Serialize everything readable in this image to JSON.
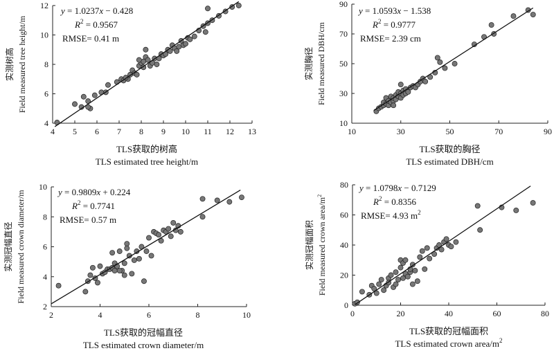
{
  "chart_data": [
    {
      "type": "scatter",
      "equation": [
        "y",
        " = 1.0237",
        "x",
        " − 0.428"
      ],
      "r2_prefix": "R",
      "r2_sup": "2",
      "r2_value": " = 0.9567",
      "rmse": "RMSE= 0.41 m",
      "rmse_sup": "",
      "xlabel_cn": "TLS获取的树高",
      "xlabel": "TLS estimated tree height/m",
      "ylabel_cn": "实测树高",
      "ylabel": "Field measured tree height/m",
      "xlim": [
        4,
        13
      ],
      "ylim": [
        4,
        12
      ],
      "xticks": [
        4,
        5,
        6,
        7,
        8,
        9,
        10,
        11,
        12,
        13
      ],
      "yticks": [
        4,
        6,
        8,
        10,
        12
      ],
      "fit": {
        "slope": 1.0237,
        "intercept": -0.428,
        "x_range": [
          4.1,
          12.4
        ]
      },
      "points": [
        [
          4.2,
          4.05
        ],
        [
          5.0,
          5.3
        ],
        [
          5.3,
          5.1
        ],
        [
          5.4,
          5.8
        ],
        [
          5.6,
          5.5
        ],
        [
          5.7,
          5.0
        ],
        [
          5.6,
          5.1
        ],
        [
          5.9,
          5.9
        ],
        [
          6.2,
          6.1
        ],
        [
          6.4,
          6.1
        ],
        [
          6.5,
          6.6
        ],
        [
          6.9,
          6.8
        ],
        [
          7.1,
          7.0
        ],
        [
          7.2,
          6.9
        ],
        [
          7.4,
          7.0
        ],
        [
          7.5,
          7.3
        ],
        [
          7.6,
          7.6
        ],
        [
          7.7,
          7.4
        ],
        [
          7.8,
          7.3
        ],
        [
          7.9,
          7.9
        ],
        [
          8.0,
          8.1
        ],
        [
          8.1,
          8.2
        ],
        [
          8.1,
          7.8
        ],
        [
          8.2,
          8.5
        ],
        [
          8.3,
          8.3
        ],
        [
          8.4,
          7.9
        ],
        [
          8.5,
          8.1
        ],
        [
          8.6,
          8.4
        ],
        [
          8.7,
          8.0
        ],
        [
          8.8,
          8.4
        ],
        [
          8.9,
          8.7
        ],
        [
          9.0,
          8.6
        ],
        [
          9.1,
          8.7
        ],
        [
          9.2,
          9.0
        ],
        [
          9.3,
          8.9
        ],
        [
          9.4,
          9.3
        ],
        [
          9.5,
          9.1
        ],
        [
          9.6,
          8.9
        ],
        [
          9.7,
          9.2
        ],
        [
          9.8,
          9.6
        ],
        [
          9.9,
          9.3
        ],
        [
          10.0,
          9.4
        ],
        [
          10.1,
          9.8
        ],
        [
          10.2,
          9.7
        ],
        [
          10.4,
          9.9
        ],
        [
          10.6,
          10.3
        ],
        [
          10.8,
          10.6
        ],
        [
          10.9,
          10.2
        ],
        [
          11.0,
          10.8
        ],
        [
          11.0,
          11.8
        ],
        [
          11.2,
          11.0
        ],
        [
          11.5,
          11.3
        ],
        [
          11.8,
          11.6
        ],
        [
          12.1,
          11.9
        ],
        [
          12.4,
          12.0
        ],
        [
          8.2,
          9.0
        ],
        [
          7.9,
          8.3
        ],
        [
          7.3,
          7.1
        ]
      ]
    },
    {
      "type": "scatter",
      "equation": [
        "y",
        " = 1.0593",
        "x",
        " − 1.538"
      ],
      "r2_prefix": "R",
      "r2_sup": "2",
      "r2_value": " = 0.9777",
      "rmse": "RMSE= 2.39 cm",
      "rmse_sup": "",
      "xlabel_cn": "TLS获取的胸径",
      "xlabel": "TLS estimated DBH/cm",
      "ylabel_cn": "实测胸径",
      "ylabel": "Field measured DBH/cm",
      "xlim": [
        10,
        90
      ],
      "ylim": [
        10,
        90
      ],
      "xticks": [
        10,
        30,
        50,
        70,
        90
      ],
      "yticks": [
        10,
        30,
        50,
        70,
        90
      ],
      "fit": {
        "slope": 1.0593,
        "intercept": -1.538,
        "x_range": [
          19,
          84
        ]
      },
      "points": [
        [
          20,
          18
        ],
        [
          21,
          20
        ],
        [
          22,
          21
        ],
        [
          23,
          22
        ],
        [
          23,
          24
        ],
        [
          24,
          23
        ],
        [
          24,
          27
        ],
        [
          25,
          22
        ],
        [
          25,
          25
        ],
        [
          26,
          24
        ],
        [
          26,
          28
        ],
        [
          27,
          25
        ],
        [
          27,
          27
        ],
        [
          28,
          26
        ],
        [
          28,
          29
        ],
        [
          29,
          28
        ],
        [
          29,
          31
        ],
        [
          30,
          27
        ],
        [
          30,
          30
        ],
        [
          31,
          29
        ],
        [
          31,
          32
        ],
        [
          32,
          30
        ],
        [
          32,
          33
        ],
        [
          33,
          31
        ],
        [
          34,
          34
        ],
        [
          35,
          35
        ],
        [
          36,
          34
        ],
        [
          37,
          36
        ],
        [
          38,
          38
        ],
        [
          39,
          40
        ],
        [
          40,
          38
        ],
        [
          42,
          41
        ],
        [
          44,
          44
        ],
        [
          45,
          54
        ],
        [
          46,
          51
        ],
        [
          48,
          47
        ],
        [
          52,
          50
        ],
        [
          60,
          63
        ],
        [
          64,
          68
        ],
        [
          67,
          76
        ],
        [
          68,
          70
        ],
        [
          76,
          82
        ],
        [
          82,
          86
        ],
        [
          84,
          83
        ],
        [
          30,
          36
        ],
        [
          27,
          22
        ]
      ]
    },
    {
      "type": "scatter",
      "equation": [
        "y",
        " = 0.9809",
        "x",
        " + 0.224"
      ],
      "r2_prefix": "R",
      "r2_sup": "2",
      "r2_value": " = 0.7741",
      "rmse": "RMSE= 0.57 m",
      "rmse_sup": "",
      "xlabel_cn": "TLS获取的冠幅直径",
      "xlabel": "TLS estimated crown diameter/m",
      "ylabel_cn": "实测冠幅直径",
      "ylabel": "Field measured crown diameter/m",
      "xlim": [
        2,
        10
      ],
      "ylim": [
        2,
        10
      ],
      "xticks": [
        2,
        4,
        6,
        8,
        10
      ],
      "yticks": [
        2,
        4,
        6,
        8,
        10
      ],
      "fit": {
        "slope": 0.9809,
        "intercept": 0.224,
        "x_range": [
          2,
          9.75
        ]
      },
      "points": [
        [
          2.3,
          3.4
        ],
        [
          3.4,
          3.0
        ],
        [
          3.5,
          3.7
        ],
        [
          3.6,
          4.1
        ],
        [
          3.7,
          4.6
        ],
        [
          3.8,
          3.9
        ],
        [
          3.9,
          3.6
        ],
        [
          4.0,
          4.7
        ],
        [
          4.1,
          4.2
        ],
        [
          4.2,
          4.3
        ],
        [
          4.3,
          4.5
        ],
        [
          4.4,
          4.5
        ],
        [
          4.5,
          4.6
        ],
        [
          4.5,
          5.6
        ],
        [
          4.6,
          4.9
        ],
        [
          4.7,
          4.7
        ],
        [
          4.8,
          5.7
        ],
        [
          4.9,
          4.4
        ],
        [
          5.0,
          4.9
        ],
        [
          5.1,
          6.2
        ],
        [
          5.1,
          5.9
        ],
        [
          5.2,
          5.4
        ],
        [
          5.3,
          4.2
        ],
        [
          5.4,
          5.1
        ],
        [
          5.5,
          5.7
        ],
        [
          5.6,
          5.2
        ],
        [
          5.7,
          6.0
        ],
        [
          5.8,
          3.7
        ],
        [
          5.9,
          5.7
        ],
        [
          6.0,
          6.6
        ],
        [
          6.1,
          5.4
        ],
        [
          6.2,
          7.0
        ],
        [
          6.3,
          6.9
        ],
        [
          6.4,
          6.8
        ],
        [
          6.5,
          6.4
        ],
        [
          6.6,
          7.1
        ],
        [
          6.7,
          7.0
        ],
        [
          6.8,
          7.2
        ],
        [
          6.9,
          6.7
        ],
        [
          7.0,
          7.6
        ],
        [
          7.1,
          7.1
        ],
        [
          7.2,
          7.4
        ],
        [
          7.3,
          7.0
        ],
        [
          8.2,
          9.2
        ],
        [
          8.2,
          8.0
        ],
        [
          8.8,
          9.1
        ],
        [
          9.3,
          9.0
        ],
        [
          9.8,
          9.3
        ],
        [
          4.8,
          4.4
        ],
        [
          5.0,
          4.1
        ],
        [
          4.6,
          4.4
        ]
      ]
    },
    {
      "type": "scatter",
      "equation": [
        "y",
        " = 1.0798",
        "x",
        " − 0.7129"
      ],
      "r2_prefix": "R",
      "r2_sup": "2",
      "r2_value": " = 0.8356",
      "rmse": "RMSE= 4.93 m",
      "rmse_sup": "2",
      "xlabel_cn": "TLS获取的冠幅面积",
      "xlabel": "TLS estimated crown area/m",
      "xlabel_sup": "2",
      "ylabel_cn": "实测冠幅面积",
      "ylabel": "Field measured crown area/m",
      "ylabel_sup": "2",
      "xlim": [
        0,
        80
      ],
      "ylim": [
        0,
        80
      ],
      "xticks": [
        0,
        20,
        40,
        60,
        80
      ],
      "yticks": [
        0,
        20,
        40,
        60,
        80
      ],
      "fit": {
        "slope": 1.0798,
        "intercept": -0.7129,
        "x_range": [
          1,
          74
        ]
      },
      "points": [
        [
          1,
          1
        ],
        [
          2,
          2
        ],
        [
          4,
          9
        ],
        [
          7,
          7
        ],
        [
          8,
          13
        ],
        [
          9,
          11
        ],
        [
          10,
          8
        ],
        [
          11,
          14
        ],
        [
          12,
          17
        ],
        [
          13,
          10
        ],
        [
          14,
          13
        ],
        [
          15,
          18
        ],
        [
          15,
          15
        ],
        [
          16,
          20
        ],
        [
          17,
          12
        ],
        [
          18,
          14
        ],
        [
          18,
          22
        ],
        [
          19,
          17
        ],
        [
          20,
          25
        ],
        [
          20,
          30
        ],
        [
          21,
          18
        ],
        [
          21,
          28
        ],
        [
          22,
          21
        ],
        [
          23,
          19
        ],
        [
          24,
          22
        ],
        [
          25,
          27
        ],
        [
          25,
          14
        ],
        [
          26,
          23
        ],
        [
          27,
          16
        ],
        [
          28,
          32
        ],
        [
          29,
          36
        ],
        [
          30,
          24
        ],
        [
          31,
          38
        ],
        [
          32,
          31
        ],
        [
          34,
          34
        ],
        [
          35,
          38
        ],
        [
          36,
          40
        ],
        [
          37,
          37
        ],
        [
          38,
          42
        ],
        [
          39,
          44
        ],
        [
          40,
          40
        ],
        [
          41,
          39
        ],
        [
          43,
          42
        ],
        [
          52,
          66
        ],
        [
          53,
          50
        ],
        [
          62,
          65
        ],
        [
          68,
          63
        ],
        [
          75,
          68
        ],
        [
          22,
          30
        ],
        [
          24,
          24
        ]
      ]
    }
  ]
}
